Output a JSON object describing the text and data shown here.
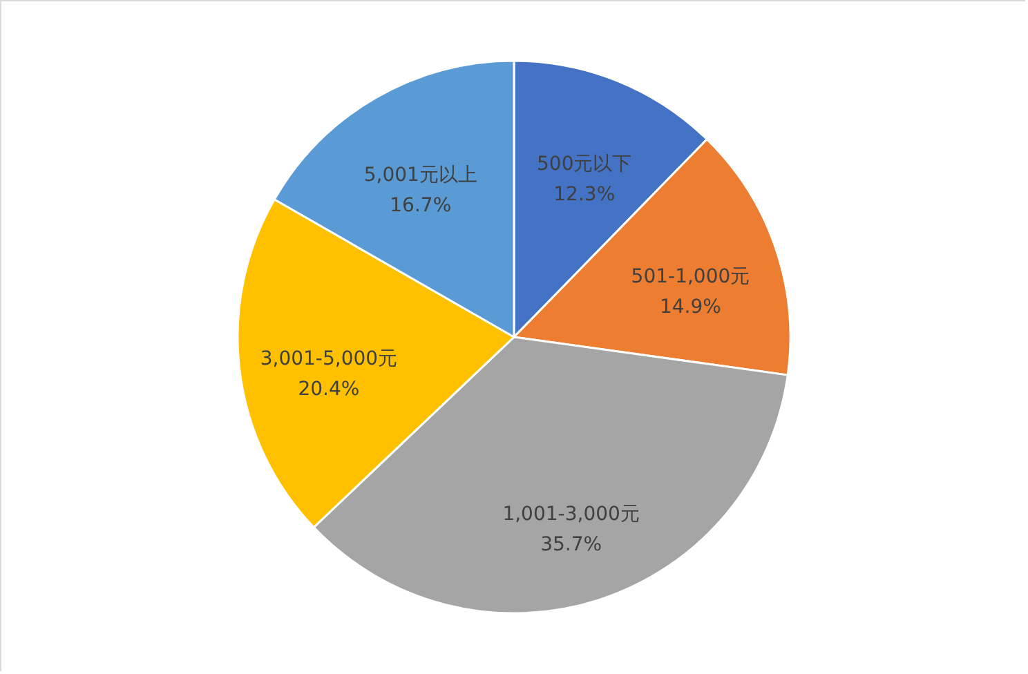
{
  "chart_data": {
    "type": "pie",
    "categories": [
      "500元以下",
      "501-1,000元",
      "1,001-3,000元",
      "3,001-5,000元",
      "5,001元以上"
    ],
    "values": [
      12.3,
      14.9,
      35.7,
      20.4,
      16.7
    ],
    "value_labels": [
      "12.3%",
      "14.9%",
      "35.7%",
      "20.4%",
      "16.7%"
    ],
    "colors": [
      "#4472c4",
      "#ed7d31",
      "#a5a5a5",
      "#ffc000",
      "#5b9bd5"
    ]
  }
}
